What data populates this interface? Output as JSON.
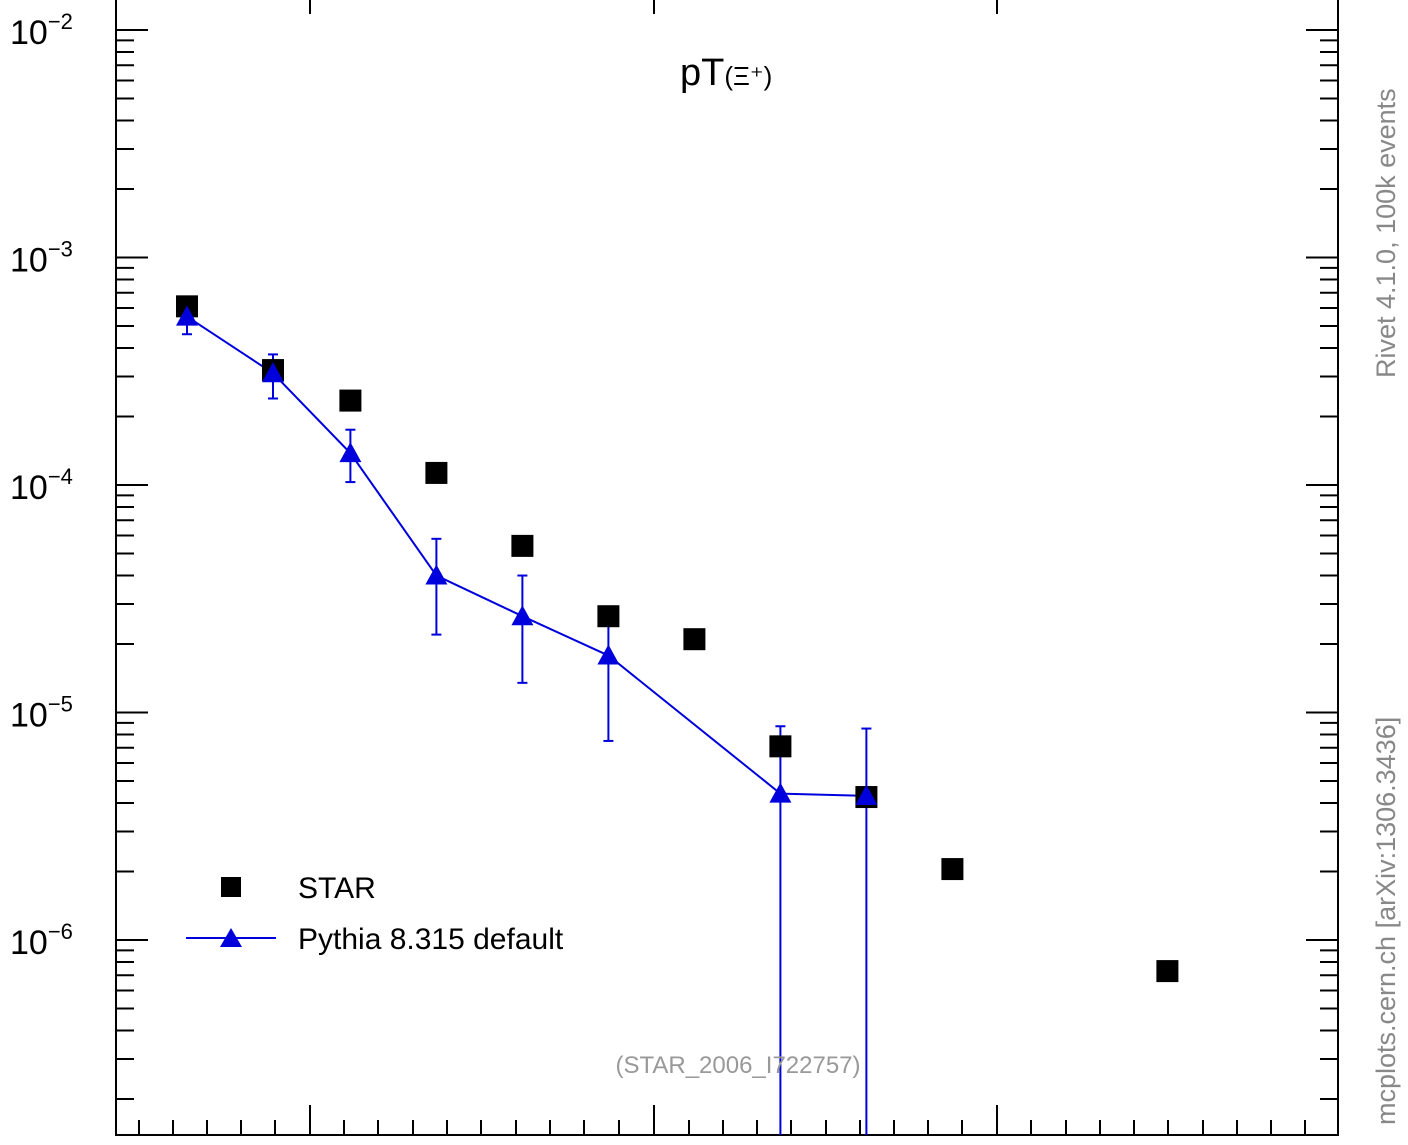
{
  "chart_data": {
    "type": "scatter",
    "title_main": "pT",
    "title_sub": "(Ξ⁺)",
    "title": "pT(Ξ⁺)",
    "xlabel": "",
    "ylabel": "",
    "y_scale": "log",
    "ylim": [
      1.8e-07,
      0.014
    ],
    "xlim": [
      0.25,
      6.5
    ],
    "y_tick_labels": [
      {
        "value": 0.01,
        "base": "10",
        "exp": "−2"
      },
      {
        "value": 0.001,
        "base": "10",
        "exp": "−3"
      },
      {
        "value": 0.0001,
        "base": "10",
        "exp": "−4"
      },
      {
        "value": 1e-05,
        "base": "10",
        "exp": "−5"
      },
      {
        "value": 1e-06,
        "base": "10",
        "exp": "−6"
      }
    ],
    "legend_position": "bottom-left",
    "series": [
      {
        "name": "STAR",
        "marker": "square",
        "color": "#000000",
        "x": [
          0.6,
          1.0,
          1.36,
          1.76,
          2.16,
          2.56,
          2.96,
          3.36,
          3.76,
          4.16,
          5.16
        ],
        "y": [
          0.00061,
          0.00032,
          0.000235,
          0.000113,
          5.4e-05,
          2.65e-05,
          2.1e-05,
          7.1e-06,
          4.25e-06,
          2.05e-06,
          7.3e-07
        ]
      },
      {
        "name": "Pythia 8.315 default",
        "marker": "triangle",
        "color": "#0000dd",
        "line": true,
        "x": [
          0.6,
          1.0,
          1.36,
          1.76,
          2.16,
          2.56,
          3.36,
          3.76
        ],
        "y": [
          0.00055,
          0.00031,
          0.000138,
          4e-05,
          2.65e-05,
          1.78e-05,
          4.4e-06,
          4.3e-06
        ],
        "err_low": [
          0.00046,
          0.00024,
          0.000103,
          2.2e-05,
          1.35e-05,
          7.5e-06,
          1e-09,
          1e-09
        ],
        "err_high": [
          0.00064,
          0.000375,
          0.000175,
          5.8e-05,
          4e-05,
          2.8e-05,
          8.7e-06,
          8.5e-06
        ]
      }
    ]
  },
  "side_label_top": "Rivet 4.1.0,  100k events",
  "side_label_bottom": "mcplots.cern.ch [arXiv:1306.3436]",
  "analysis_label": "(STAR_2006_I722757)"
}
